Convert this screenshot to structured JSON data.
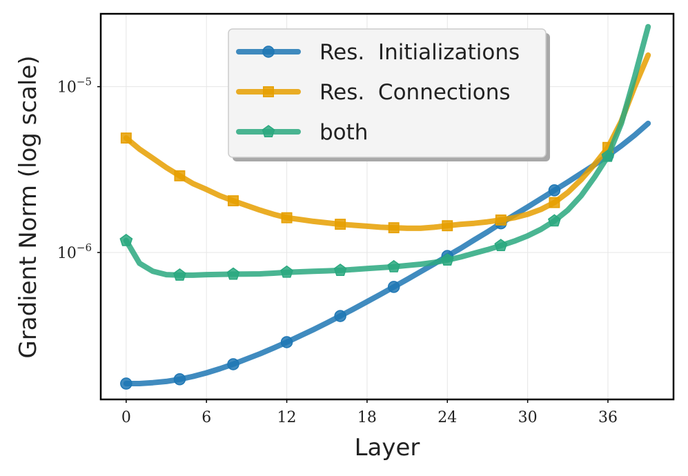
{
  "chart_data": {
    "type": "line",
    "title": "",
    "xlabel": "Layer",
    "ylabel": "Gradient Norm (log scale)",
    "yscale": "log",
    "xlim": [
      -1.9,
      40.9
    ],
    "ylim": [
      1.3e-07,
      2.75e-05
    ],
    "xticks": [
      0,
      6,
      12,
      18,
      24,
      30,
      36
    ],
    "yticks": [
      {
        "value": 1e-06,
        "mantissa": "10",
        "exponent": "−6"
      },
      {
        "value": 1e-05,
        "mantissa": "10",
        "exponent": "−5"
      }
    ],
    "grid": true,
    "legend_position": "top-center",
    "marker_every": 4,
    "series": [
      {
        "name": "Res.  Initializations",
        "color": "#1f77b4",
        "marker": "circle",
        "x": [
          0,
          1,
          2,
          3,
          4,
          5,
          6,
          7,
          8,
          9,
          10,
          11,
          12,
          13,
          14,
          15,
          16,
          17,
          18,
          19,
          20,
          21,
          22,
          23,
          24,
          25,
          26,
          27,
          28,
          29,
          30,
          31,
          32,
          33,
          34,
          35,
          36,
          37,
          38,
          39
        ],
        "values": [
          1.62e-07,
          1.62e-07,
          1.64e-07,
          1.67e-07,
          1.72e-07,
          1.79e-07,
          1.88e-07,
          1.99e-07,
          2.12e-07,
          2.28e-07,
          2.45e-07,
          2.65e-07,
          2.88e-07,
          3.14e-07,
          3.43e-07,
          3.76e-07,
          4.14e-07,
          4.57e-07,
          5.05e-07,
          5.59e-07,
          6.2e-07,
          6.88e-07,
          7.66e-07,
          8.53e-07,
          9.52e-07,
          1.06e-06,
          1.19e-06,
          1.33e-06,
          1.5e-06,
          1.68e-06,
          1.88e-06,
          2.11e-06,
          2.37e-06,
          2.66e-06,
          3e-06,
          3.38e-06,
          3.85e-06,
          4.4e-06,
          5.1e-06,
          6e-06
        ]
      },
      {
        "name": "Res.  Connections",
        "color": "#e69f00",
        "marker": "square",
        "x": [
          0,
          1,
          2,
          3,
          4,
          5,
          6,
          7,
          8,
          9,
          10,
          11,
          12,
          13,
          14,
          15,
          16,
          17,
          18,
          19,
          20,
          21,
          22,
          23,
          24,
          25,
          26,
          27,
          28,
          29,
          30,
          31,
          32,
          33,
          34,
          35,
          36,
          37,
          38,
          39
        ],
        "values": [
          4.9e-06,
          4.2e-06,
          3.7e-06,
          3.25e-06,
          2.9e-06,
          2.6e-06,
          2.4e-06,
          2.2e-06,
          2.05e-06,
          1.92e-06,
          1.8e-06,
          1.7e-06,
          1.62e-06,
          1.58e-06,
          1.54e-06,
          1.51e-06,
          1.48e-06,
          1.46e-06,
          1.44e-06,
          1.42e-06,
          1.41e-06,
          1.4e-06,
          1.4e-06,
          1.42e-06,
          1.45e-06,
          1.48e-06,
          1.5e-06,
          1.53e-06,
          1.57e-06,
          1.62e-06,
          1.7e-06,
          1.82e-06,
          2e-06,
          2.3e-06,
          2.75e-06,
          3.4e-06,
          4.3e-06,
          6.2e-06,
          1e-05,
          1.55e-05
        ]
      },
      {
        "name": "both",
        "color": "#2aa87f",
        "marker": "pentagon",
        "x": [
          0,
          1,
          2,
          3,
          4,
          5,
          6,
          7,
          8,
          9,
          10,
          11,
          12,
          13,
          14,
          15,
          16,
          17,
          18,
          19,
          20,
          21,
          22,
          23,
          24,
          25,
          26,
          27,
          28,
          29,
          30,
          31,
          32,
          33,
          34,
          35,
          36,
          37,
          38,
          39
        ],
        "values": [
          1.18e-06,
          8.6e-07,
          7.7e-07,
          7.35e-07,
          7.3e-07,
          7.3e-07,
          7.35e-07,
          7.38e-07,
          7.4e-07,
          7.42e-07,
          7.43e-07,
          7.5e-07,
          7.6e-07,
          7.65e-07,
          7.7e-07,
          7.75e-07,
          7.8e-07,
          7.9e-07,
          8e-07,
          8.1e-07,
          8.2e-07,
          8.35e-07,
          8.5e-07,
          8.7e-07,
          9e-07,
          9.4e-07,
          9.9e-07,
          1.04e-06,
          1.1e-06,
          1.17e-06,
          1.26e-06,
          1.38e-06,
          1.55e-06,
          1.8e-06,
          2.2e-06,
          2.85e-06,
          3.8e-06,
          6e-06,
          1.15e-05,
          2.3e-05
        ]
      }
    ]
  }
}
